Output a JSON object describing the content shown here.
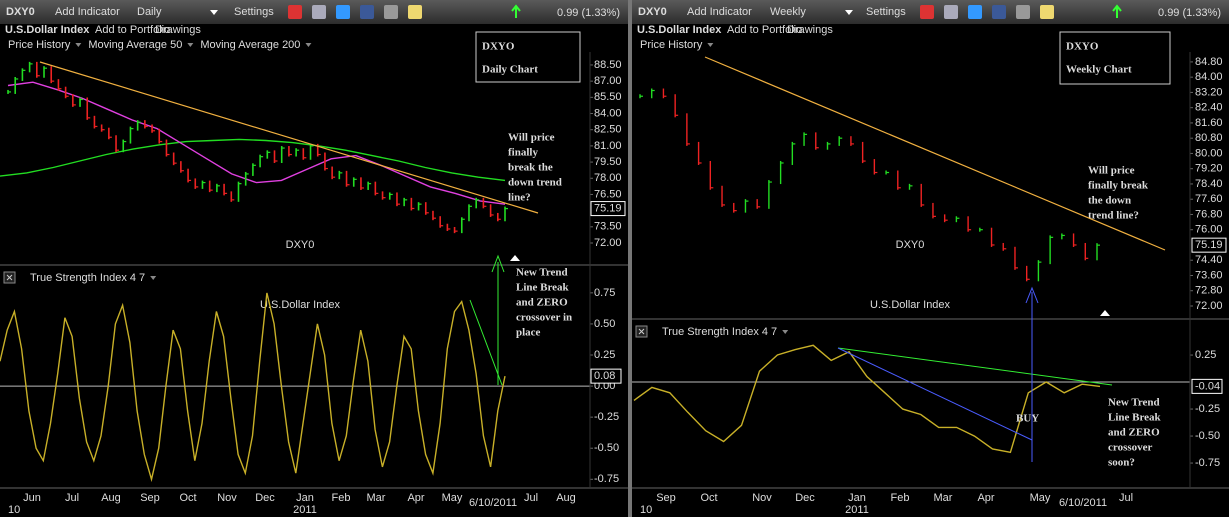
{
  "left": {
    "toolbar": {
      "symbol": "DXY0",
      "add_indicator": "Add Indicator",
      "period": "Daily",
      "settings": "Settings",
      "change": "0.99 (1.33%)"
    },
    "info": {
      "name": "U.S.Dollar Index",
      "add_to_portfolio": "Add to Portfolio",
      "drawings": "Drawings"
    },
    "legend": [
      {
        "name": "Price History",
        "color": "#22dd22"
      },
      {
        "name": "Moving Average 50",
        "color": "#e040e0"
      },
      {
        "name": "Moving Average 200",
        "color": "#22dd22"
      }
    ],
    "title": "DXYO",
    "subtitle": "Daily Chart",
    "watermark": "DXY0",
    "watermark_sub": "U.S.Dollar Index",
    "price": {
      "ylim": [
        70.24,
        89.7
      ],
      "yticks": [
        {
          "value": 88.5,
          "label": "88.50"
        },
        {
          "value": 87,
          "label": "87.00"
        },
        {
          "value": 85.5,
          "label": "85.50"
        },
        {
          "value": 84,
          "label": "84.00"
        },
        {
          "value": 82.5,
          "label": "82.50"
        },
        {
          "value": 81,
          "label": "81.00"
        },
        {
          "value": 79.5,
          "label": "79.50"
        },
        {
          "value": 78,
          "label": "78.00"
        },
        {
          "value": 76.5,
          "label": "76.50"
        },
        {
          "value": 73.5,
          "label": "73.50"
        },
        {
          "value": 72,
          "label": "72.00"
        }
      ],
      "last": 75.19,
      "values": [
        86.0,
        87.2,
        88.0,
        88.6,
        87.5,
        88.2,
        87.0,
        86.3,
        85.6,
        84.8,
        85.3,
        83.6,
        82.8,
        82.5,
        81.8,
        80.6,
        81.4,
        82.6,
        83.2,
        82.8,
        82.4,
        81.4,
        80.2,
        79.4,
        78.7,
        77.8,
        77.2,
        77.6,
        76.9,
        77.3,
        76.6,
        76.0,
        77.5,
        78.4,
        79.2,
        80.0,
        80.4,
        79.6,
        80.8,
        80.2,
        80.6,
        79.9,
        81.0,
        80.2,
        78.9,
        78.1,
        78.5,
        77.4,
        77.9,
        77.1,
        77.5,
        76.6,
        76.2,
        76.5,
        75.6,
        76.0,
        75.2,
        75.6,
        74.8,
        74.3,
        73.6,
        73.3,
        73.1,
        74.2,
        75.4,
        76.0,
        75.4,
        74.6,
        74.2,
        75.19
      ],
      "ma50": [
        86.6,
        86.9,
        86.2,
        85.4,
        84.4,
        83.4,
        82.6,
        81.2,
        79.8,
        78.4,
        77.6,
        77.8,
        78.8,
        79.8,
        80.1,
        79.2,
        78.2,
        77.2,
        76.6,
        75.9,
        75.6
      ],
      "ma200": [
        78.2,
        78.5,
        79.0,
        79.6,
        80.2,
        80.7,
        81.1,
        81.4,
        81.5,
        81.6,
        81.5,
        81.3,
        81.0,
        80.6,
        80.1,
        79.6,
        79.0,
        78.5,
        78.1,
        77.8
      ]
    },
    "annotation": [
      "Will price",
      "finally",
      "break the",
      "down trend",
      "line?"
    ],
    "tsi": {
      "label": "True Strength Index 4 7",
      "ylim": [
        -0.82,
        0.95
      ],
      "yticks": [
        0.75,
        {
          "value": 0.5,
          "label": "0.50"
        },
        0.25,
        {
          "value": 0,
          "label": "0.00"
        },
        -0.25,
        {
          "value": -0.5,
          "label": "-0.50"
        },
        -0.75
      ],
      "last": 0.08,
      "values": [
        0.2,
        0.45,
        0.6,
        0.3,
        -0.2,
        -0.5,
        -0.6,
        -0.3,
        0.1,
        0.55,
        0.4,
        -0.1,
        -0.45,
        -0.6,
        -0.4,
        0.0,
        0.5,
        0.65,
        0.35,
        -0.2,
        -0.55,
        -0.75,
        -0.5,
        0.0,
        0.45,
        0.3,
        -0.2,
        -0.6,
        -0.3,
        0.2,
        0.6,
        0.4,
        -0.1,
        -0.55,
        -0.7,
        -0.4,
        0.2,
        0.75,
        0.5,
        0.0,
        -0.45,
        -0.7,
        -0.3,
        0.1,
        0.5,
        0.25,
        -0.3,
        -0.6,
        -0.4,
        0.05,
        0.45,
        0.2,
        -0.35,
        -0.65,
        -0.45,
        0.0,
        0.4,
        0.3,
        -0.2,
        -0.55,
        -0.7,
        -0.3,
        0.3,
        0.6,
        0.68,
        0.45,
        0.1,
        -0.4,
        -0.65,
        -0.2,
        0.08
      ]
    },
    "tsi_annotation": [
      "New Trend",
      "Line Break",
      "and ZERO",
      "crossover in",
      "place"
    ],
    "x_labels": [
      "Jun",
      "Jul",
      "Aug",
      "Sep",
      "Oct",
      "Nov",
      "Dec",
      "Jan",
      "Feb",
      "Mar",
      "Apr",
      "May",
      "6/10/2011",
      "Jul",
      "Aug"
    ],
    "year_labels": [
      "10",
      "2011"
    ]
  },
  "right": {
    "toolbar": {
      "symbol": "DXY0",
      "add_indicator": "Add Indicator",
      "period": "Weekly",
      "settings": "Settings",
      "change": "0.99 (1.33%)"
    },
    "info": {
      "name": "U.S.Dollar Index",
      "add_to_portfolio": "Add to Portfolio",
      "drawings": "Drawings"
    },
    "legend": [
      {
        "name": "Price History",
        "color": "#22dd22"
      }
    ],
    "title": "DXYO",
    "subtitle": "Weekly Chart",
    "watermark": "DXY0",
    "watermark_sub": "U.S.Dollar Index",
    "price": {
      "ylim": [
        71.37,
        85.32
      ],
      "yticks": [
        {
          "value": 84.8,
          "label": "84.80"
        },
        {
          "value": 84,
          "label": "84.00"
        },
        {
          "value": 83.2,
          "label": "83.20"
        },
        {
          "value": 82.4,
          "label": "82.40"
        },
        {
          "value": 81.6,
          "label": "81.60"
        },
        {
          "value": 80.8,
          "label": "80.80"
        },
        {
          "value": 80,
          "label": "80.00"
        },
        {
          "value": 79.2,
          "label": "79.20"
        },
        {
          "value": 78.4,
          "label": "78.40"
        },
        {
          "value": 77.6,
          "label": "77.60"
        },
        {
          "value": 76.8,
          "label": "76.80"
        },
        {
          "value": 76,
          "label": "76.00"
        },
        {
          "value": 74.4,
          "label": "74.40"
        },
        {
          "value": 73.6,
          "label": "73.60"
        },
        {
          "value": 72.8,
          "label": "72.80"
        },
        {
          "value": 72,
          "label": "72.00"
        }
      ],
      "last": 75.19,
      "values": [
        83.0,
        83.3,
        83.0,
        82.0,
        80.5,
        79.5,
        78.2,
        77.3,
        77.0,
        77.5,
        77.2,
        78.5,
        79.5,
        80.5,
        81.0,
        80.3,
        80.5,
        80.8,
        80.5,
        79.6,
        79.0,
        79.0,
        78.2,
        78.3,
        77.3,
        76.7,
        76.5,
        76.6,
        76.0,
        76.0,
        75.2,
        75.0,
        74.0,
        73.4,
        74.3,
        75.6,
        75.7,
        75.2,
        74.5,
        75.19
      ]
    },
    "annotation": [
      "Will price",
      "finally break",
      "the down",
      "trend line?"
    ],
    "tsi": {
      "label": "True Strength Index 4 7",
      "ylim": [
        -0.981,
        0.556
      ],
      "yticks": [
        0.25,
        -0.25,
        {
          "value": -0.5,
          "label": "-0.50"
        },
        -0.75
      ],
      "last": -0.04,
      "values": [
        -0.17,
        -0.05,
        -0.1,
        -0.28,
        -0.45,
        -0.55,
        -0.4,
        0.1,
        0.25,
        0.3,
        0.34,
        0.2,
        0.28,
        0.05,
        -0.1,
        -0.25,
        -0.3,
        -0.42,
        -0.42,
        -0.5,
        -0.62,
        -0.65,
        -0.1,
        0.0,
        -0.1,
        -0.02,
        -0.04
      ]
    },
    "tsi_annotation": [
      "New Trend",
      "Line Break",
      "and ZERO",
      "crossover",
      "soon?"
    ],
    "buy_label": "BUY",
    "x_labels": [
      "Sep",
      "Oct",
      "Nov",
      "Dec",
      "Jan",
      "Feb",
      "Mar",
      "Apr",
      "May",
      "6/10/2011",
      "Jul"
    ],
    "year_labels": [
      "10",
      "2011"
    ]
  }
}
